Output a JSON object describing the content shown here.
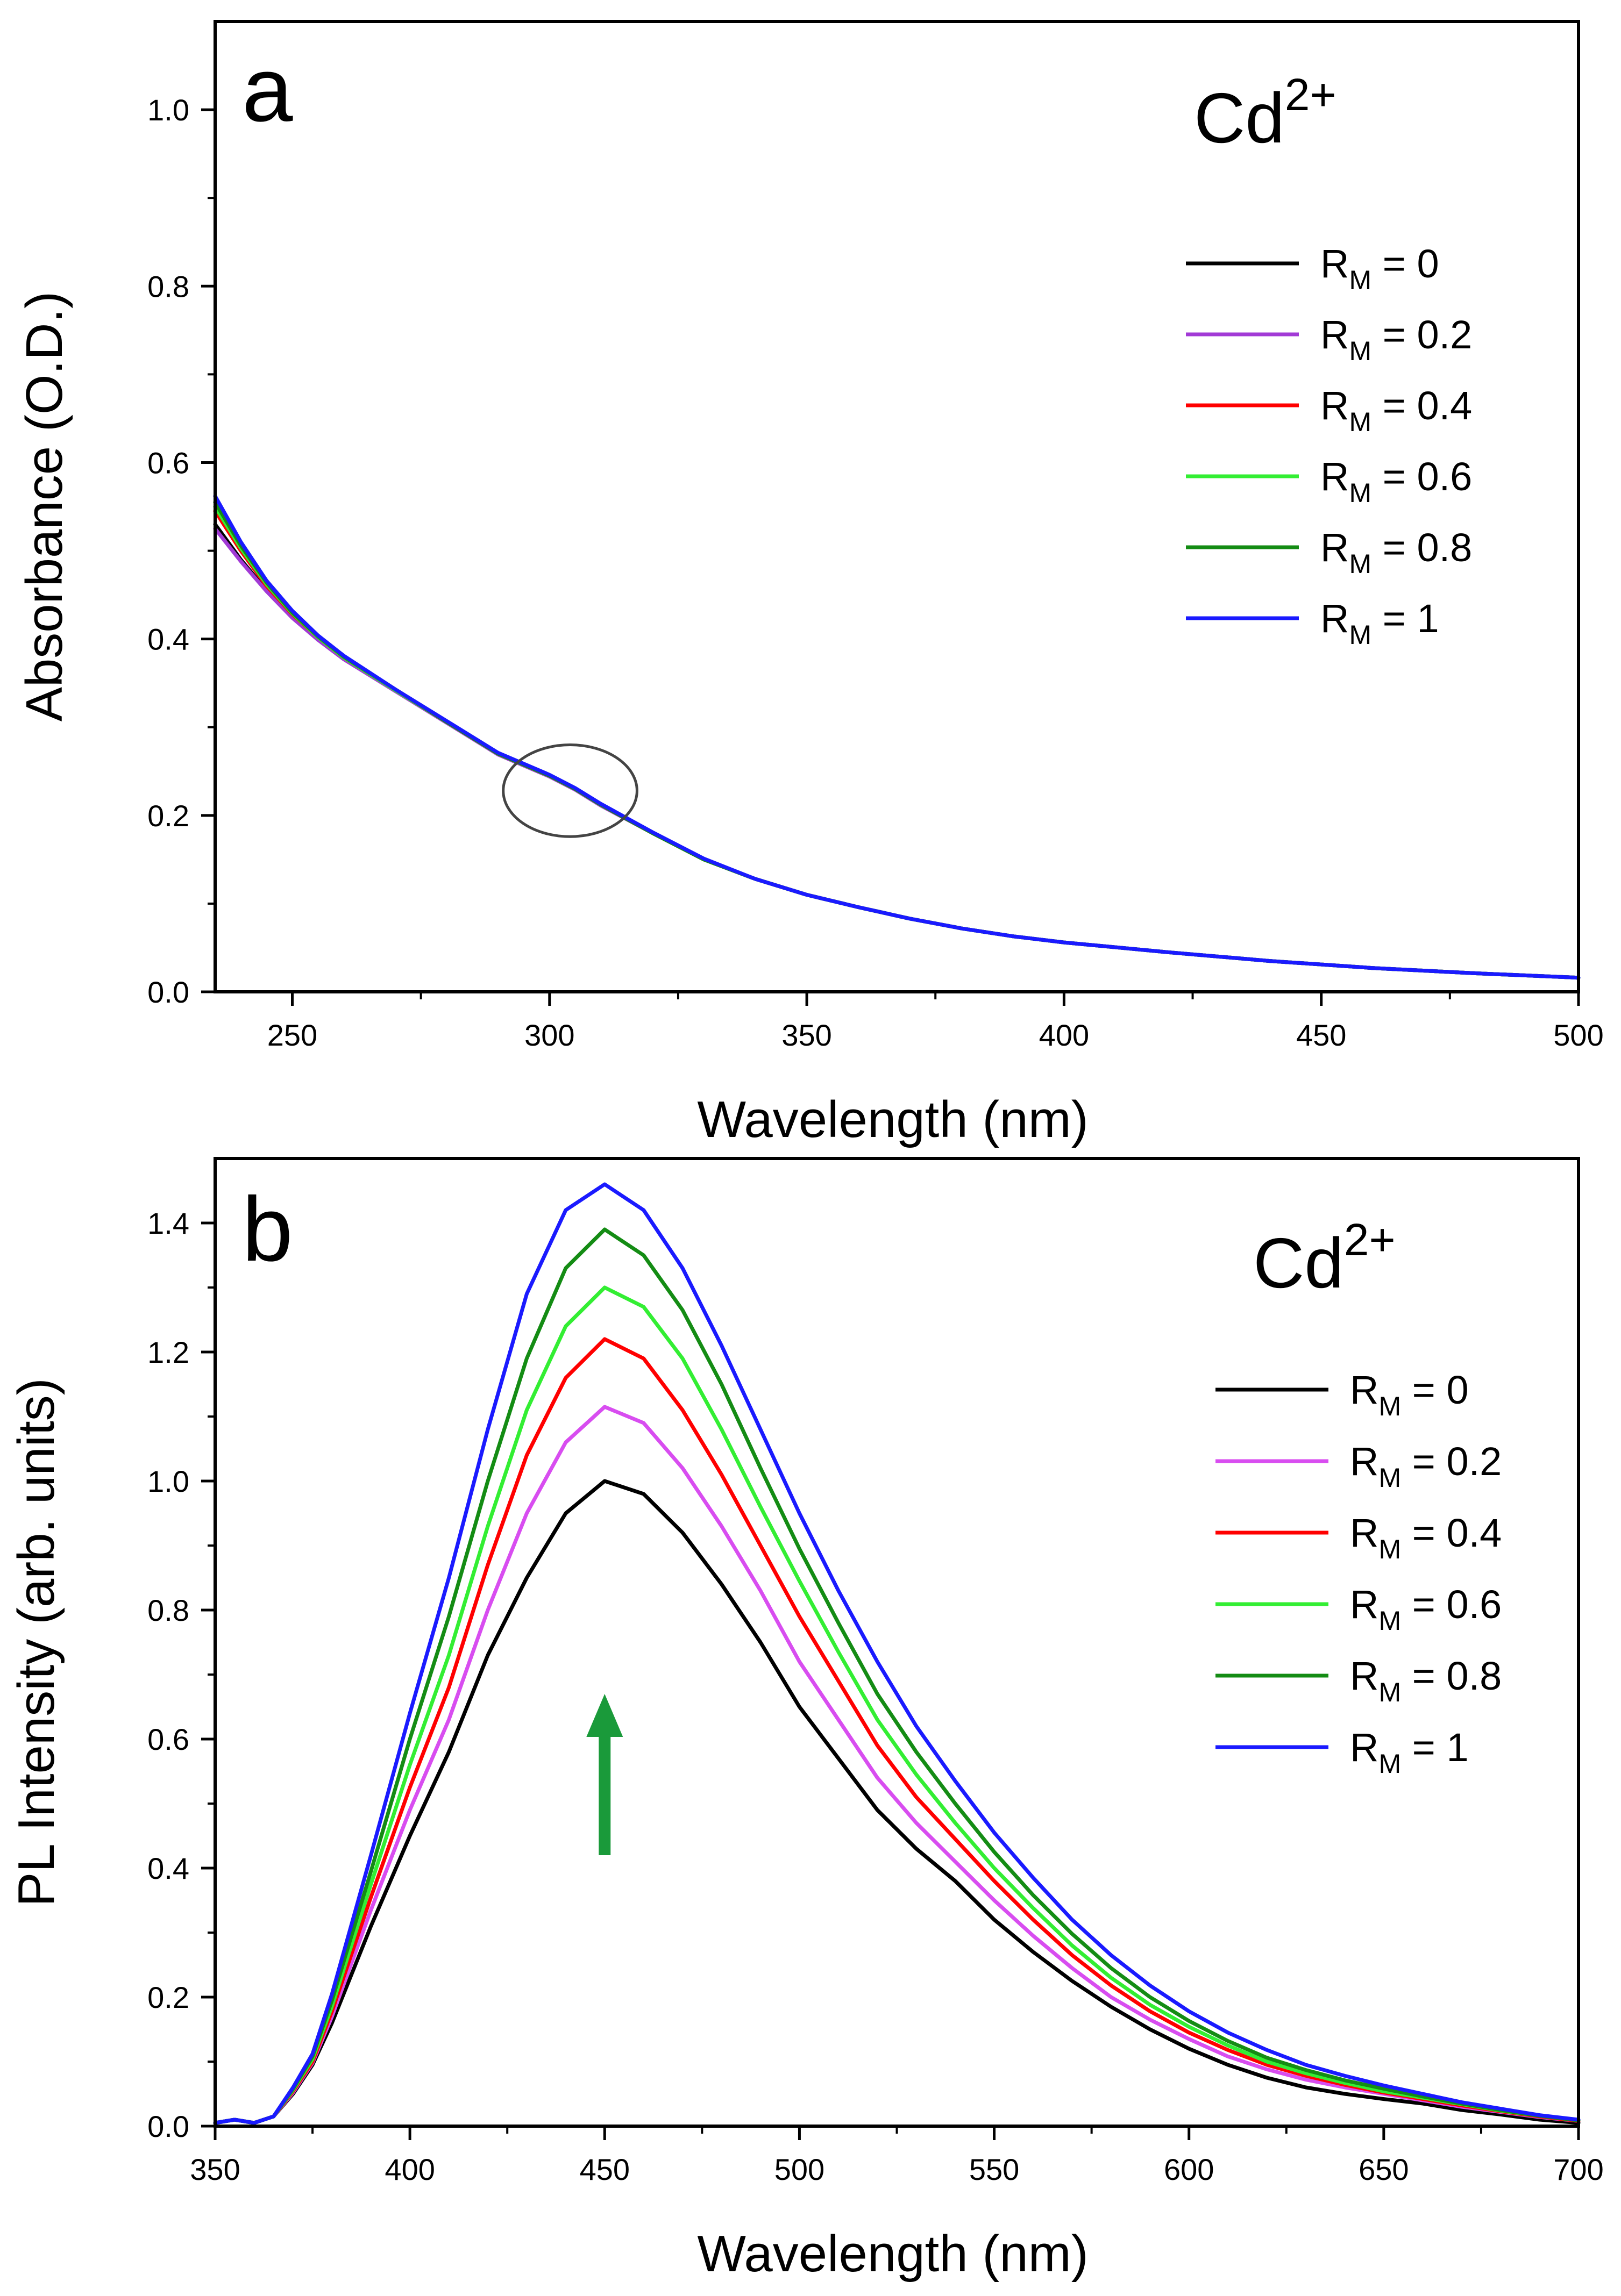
{
  "chart_data": [
    {
      "panel": "a",
      "type": "line",
      "ion_label": {
        "base": "Cd",
        "sup": "2+"
      },
      "xlabel": "Wavelength (nm)",
      "ylabel": "Absorbance (O.D.)",
      "xlim": [
        235,
        500
      ],
      "ylim": [
        0,
        1.1
      ],
      "xticks": [
        250,
        300,
        350,
        400,
        450,
        500
      ],
      "yticks": [
        0.0,
        0.2,
        0.4,
        0.6,
        0.8,
        1.0
      ],
      "legend_position": "top-right",
      "annotation": {
        "type": "ellipse",
        "cx": 304,
        "cy": 0.228,
        "rx": 13,
        "ry": 0.052,
        "color": "#444444"
      },
      "x": [
        235,
        240,
        245,
        250,
        255,
        260,
        270,
        280,
        290,
        300,
        305,
        310,
        320,
        330,
        340,
        350,
        360,
        370,
        380,
        390,
        400,
        420,
        440,
        460,
        480,
        500
      ],
      "series": [
        {
          "name_base": "R",
          "name_sub": "M",
          "name_rest": " = 0",
          "color": "#000000",
          "values": [
            0.53,
            0.49,
            0.455,
            0.425,
            0.4,
            0.378,
            0.342,
            0.306,
            0.27,
            0.245,
            0.23,
            0.212,
            0.18,
            0.15,
            0.128,
            0.11,
            0.096,
            0.083,
            0.072,
            0.063,
            0.056,
            0.045,
            0.035,
            0.027,
            0.021,
            0.016
          ]
        },
        {
          "name_base": "R",
          "name_sub": "M",
          "name_rest": " = 0.2",
          "color": "#a23ad6",
          "values": [
            0.525,
            0.488,
            0.454,
            0.424,
            0.399,
            0.377,
            0.341,
            0.305,
            0.269,
            0.244,
            0.229,
            0.211,
            0.18,
            0.15,
            0.128,
            0.11,
            0.096,
            0.083,
            0.072,
            0.063,
            0.056,
            0.045,
            0.035,
            0.027,
            0.021,
            0.016
          ]
        },
        {
          "name_base": "R",
          "name_sub": "M",
          "name_rest": " = 0.4",
          "color": "#ff0000",
          "values": [
            0.545,
            0.5,
            0.46,
            0.428,
            0.402,
            0.379,
            0.342,
            0.306,
            0.27,
            0.245,
            0.23,
            0.212,
            0.18,
            0.15,
            0.128,
            0.11,
            0.096,
            0.083,
            0.072,
            0.063,
            0.056,
            0.045,
            0.035,
            0.027,
            0.021,
            0.016
          ]
        },
        {
          "name_base": "R",
          "name_sub": "M",
          "name_rest": " = 0.6",
          "color": "#33ee33",
          "values": [
            0.55,
            0.503,
            0.462,
            0.429,
            0.402,
            0.379,
            0.342,
            0.306,
            0.27,
            0.245,
            0.23,
            0.212,
            0.18,
            0.15,
            0.128,
            0.11,
            0.096,
            0.083,
            0.072,
            0.063,
            0.056,
            0.045,
            0.035,
            0.027,
            0.021,
            0.016
          ]
        },
        {
          "name_base": "R",
          "name_sub": "M",
          "name_rest": " = 0.8",
          "color": "#148c14",
          "values": [
            0.555,
            0.506,
            0.464,
            0.43,
            0.403,
            0.38,
            0.343,
            0.306,
            0.27,
            0.245,
            0.23,
            0.212,
            0.18,
            0.15,
            0.128,
            0.11,
            0.096,
            0.083,
            0.072,
            0.063,
            0.056,
            0.045,
            0.035,
            0.027,
            0.021,
            0.016
          ]
        },
        {
          "name_base": "R",
          "name_sub": "M",
          "name_rest": " = 1",
          "color": "#1a1aff",
          "values": [
            0.562,
            0.51,
            0.466,
            0.432,
            0.404,
            0.381,
            0.343,
            0.307,
            0.271,
            0.246,
            0.231,
            0.213,
            0.181,
            0.151,
            0.128,
            0.11,
            0.096,
            0.083,
            0.072,
            0.063,
            0.056,
            0.045,
            0.035,
            0.027,
            0.021,
            0.016
          ]
        }
      ]
    },
    {
      "panel": "b",
      "type": "line",
      "ion_label": {
        "base": "Cd",
        "sup": "2+"
      },
      "xlabel": "Wavelength (nm)",
      "ylabel": "PL Intensity (arb. units)",
      "xlim": [
        350,
        700
      ],
      "ylim": [
        0,
        1.5
      ],
      "xticks": [
        350,
        400,
        450,
        500,
        550,
        600,
        650,
        700
      ],
      "yticks": [
        0.0,
        0.2,
        0.4,
        0.6,
        0.8,
        1.0,
        1.2,
        1.4
      ],
      "legend_position": "right",
      "annotation": {
        "type": "arrow",
        "direction": "up",
        "x": 450,
        "y_from": 0.42,
        "y_to": 0.67,
        "color": "#1a9a3a"
      },
      "x": [
        350,
        355,
        360,
        365,
        370,
        375,
        380,
        390,
        400,
        410,
        420,
        430,
        440,
        450,
        460,
        470,
        480,
        490,
        500,
        510,
        520,
        530,
        540,
        550,
        560,
        570,
        580,
        590,
        600,
        610,
        620,
        630,
        640,
        650,
        660,
        670,
        680,
        690,
        700
      ],
      "series": [
        {
          "name_base": "R",
          "name_sub": "M",
          "name_rest": " = 0",
          "color": "#000000",
          "values": [
            0.005,
            0.01,
            0.005,
            0.015,
            0.05,
            0.095,
            0.16,
            0.31,
            0.45,
            0.58,
            0.73,
            0.85,
            0.95,
            1.0,
            0.98,
            0.92,
            0.84,
            0.75,
            0.65,
            0.57,
            0.49,
            0.43,
            0.38,
            0.32,
            0.27,
            0.225,
            0.185,
            0.15,
            0.12,
            0.095,
            0.075,
            0.06,
            0.05,
            0.042,
            0.035,
            0.025,
            0.018,
            0.01,
            0.005
          ]
        },
        {
          "name_base": "R",
          "name_sub": "M",
          "name_rest": " = 0.2",
          "color": "#d84df0",
          "values": [
            0.005,
            0.01,
            0.005,
            0.015,
            0.052,
            0.098,
            0.17,
            0.335,
            0.49,
            0.63,
            0.8,
            0.95,
            1.06,
            1.115,
            1.09,
            1.02,
            0.93,
            0.83,
            0.72,
            0.63,
            0.54,
            0.47,
            0.41,
            0.35,
            0.295,
            0.245,
            0.2,
            0.165,
            0.135,
            0.108,
            0.088,
            0.072,
            0.06,
            0.05,
            0.04,
            0.03,
            0.022,
            0.014,
            0.008
          ]
        },
        {
          "name_base": "R",
          "name_sub": "M",
          "name_rest": " = 0.4",
          "color": "#ff0000",
          "values": [
            0.005,
            0.01,
            0.005,
            0.015,
            0.054,
            0.1,
            0.178,
            0.355,
            0.525,
            0.68,
            0.87,
            1.04,
            1.16,
            1.22,
            1.19,
            1.11,
            1.01,
            0.9,
            0.79,
            0.69,
            0.59,
            0.51,
            0.445,
            0.38,
            0.32,
            0.265,
            0.218,
            0.178,
            0.145,
            0.118,
            0.095,
            0.078,
            0.064,
            0.052,
            0.042,
            0.032,
            0.023,
            0.015,
            0.008
          ]
        },
        {
          "name_base": "R",
          "name_sub": "M",
          "name_rest": " = 0.6",
          "color": "#33ee33",
          "values": [
            0.005,
            0.01,
            0.005,
            0.015,
            0.056,
            0.104,
            0.186,
            0.375,
            0.56,
            0.73,
            0.93,
            1.11,
            1.24,
            1.3,
            1.27,
            1.19,
            1.08,
            0.96,
            0.845,
            0.735,
            0.63,
            0.545,
            0.47,
            0.4,
            0.338,
            0.28,
            0.23,
            0.188,
            0.154,
            0.125,
            0.1,
            0.082,
            0.067,
            0.054,
            0.044,
            0.034,
            0.024,
            0.016,
            0.009
          ]
        },
        {
          "name_base": "R",
          "name_sub": "M",
          "name_rest": " = 0.8",
          "color": "#148c14",
          "values": [
            0.005,
            0.01,
            0.005,
            0.015,
            0.058,
            0.108,
            0.195,
            0.395,
            0.6,
            0.79,
            1.0,
            1.19,
            1.33,
            1.39,
            1.35,
            1.265,
            1.15,
            1.02,
            0.895,
            0.78,
            0.67,
            0.58,
            0.5,
            0.425,
            0.358,
            0.298,
            0.245,
            0.2,
            0.163,
            0.132,
            0.106,
            0.087,
            0.071,
            0.058,
            0.046,
            0.035,
            0.025,
            0.016,
            0.009
          ]
        },
        {
          "name_base": "R",
          "name_sub": "M",
          "name_rest": " = 1",
          "color": "#1a1aff",
          "values": [
            0.005,
            0.01,
            0.005,
            0.015,
            0.06,
            0.112,
            0.205,
            0.42,
            0.64,
            0.85,
            1.08,
            1.29,
            1.42,
            1.46,
            1.42,
            1.33,
            1.21,
            1.08,
            0.95,
            0.83,
            0.72,
            0.62,
            0.535,
            0.455,
            0.385,
            0.32,
            0.265,
            0.218,
            0.178,
            0.145,
            0.118,
            0.095,
            0.078,
            0.063,
            0.05,
            0.037,
            0.027,
            0.017,
            0.01
          ]
        }
      ]
    }
  ]
}
